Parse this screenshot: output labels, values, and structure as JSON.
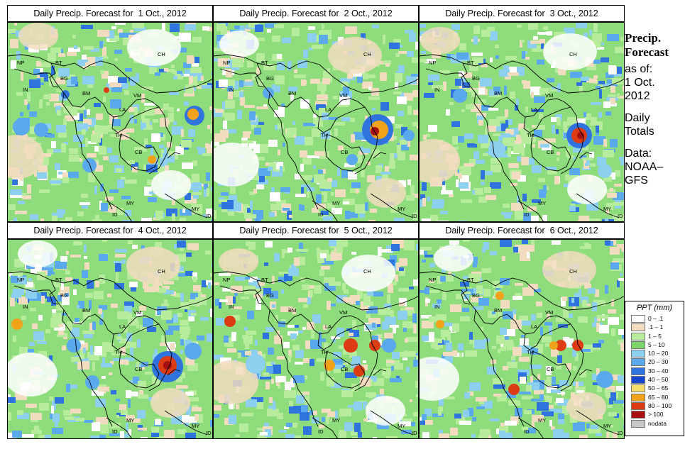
{
  "colors": {
    "background": "#ffffff",
    "land_green": "#8fdc7c",
    "sea_beige": "#f2dcc2",
    "country_line": "#000000"
  },
  "panels": [
    {
      "title": "Daily Precip. Forecast for  1 Oct., 2012",
      "day": 1
    },
    {
      "title": "Daily Precip. Forecast for  2 Oct., 2012",
      "day": 2
    },
    {
      "title": "Daily Precip. Forecast for  3 Oct., 2012",
      "day": 3
    },
    {
      "title": "Daily Precip. Forecast for  4 Oct., 2012",
      "day": 4
    },
    {
      "title": "Daily Precip. Forecast for  5 Oct., 2012",
      "day": 5
    },
    {
      "title": "Daily Precip. Forecast for  6 Oct., 2012",
      "day": 6
    }
  ],
  "map_labels": [
    "NP",
    "BT",
    "BG",
    "IN",
    "BM",
    "CH",
    "VM",
    "LA",
    "TH",
    "CB",
    "MY",
    "ID",
    "MY",
    "ID"
  ],
  "side": {
    "title_line1": "Precip.",
    "title_line2": "Forecast",
    "asof_line1": "as of:",
    "asof_line2": "1 Oct.",
    "asof_line3": "2012",
    "totals_line1": "Daily",
    "totals_line2": "Totals",
    "source_line1": "Data:",
    "source_line2": "NOAA–",
    "source_line3": "GFS"
  },
  "legend": {
    "title": "PPT (mm)",
    "items": [
      {
        "label": "0 – .1",
        "color": "#ffffff"
      },
      {
        "label": ".1 – 1",
        "color": "#f1dcc0"
      },
      {
        "label": "1 – 5",
        "color": "#b7ec9c"
      },
      {
        "label": "5 – 10",
        "color": "#7dd66a"
      },
      {
        "label": "10 – 20",
        "color": "#8ccfee"
      },
      {
        "label": "20 – 30",
        "color": "#5aa9ec"
      },
      {
        "label": "30 – 40",
        "color": "#2f74de"
      },
      {
        "label": "40 – 50",
        "color": "#1846cf"
      },
      {
        "label": "50 – 65",
        "color": "#f6dc6a"
      },
      {
        "label": "65 – 80",
        "color": "#f1a21b"
      },
      {
        "label": "80 – 100",
        "color": "#dc3b14"
      },
      {
        "label": "> 100",
        "color": "#a50f0f"
      },
      {
        "label": "nodata",
        "color": "#c8c8c8"
      }
    ]
  }
}
